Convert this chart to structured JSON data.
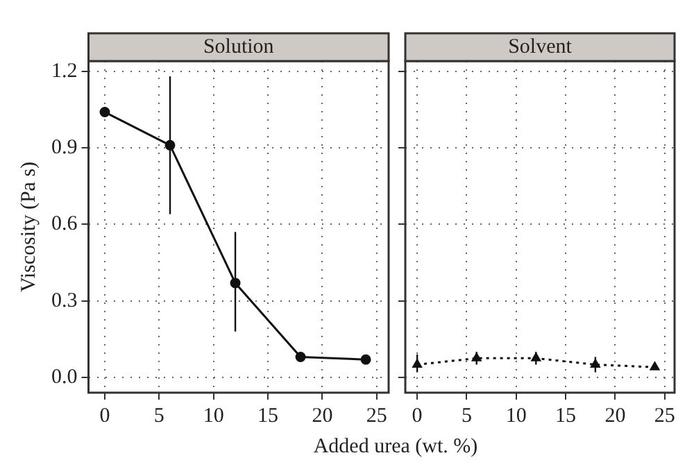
{
  "chart_data": [
    {
      "type": "line",
      "title": "Solution",
      "ylabel": "Viscosity (Pa s)",
      "xlabel": "Added urea (wt. %)",
      "x": [
        0,
        6,
        12,
        18,
        24
      ],
      "series": [
        {
          "color": "#111111",
          "values": [
            1.04,
            0.91,
            0.37,
            0.08,
            0.07
          ],
          "errors": [
            null,
            [
              0.64,
              1.18
            ],
            [
              0.18,
              0.57
            ],
            null,
            0.01
          ]
        }
      ],
      "xlim": [
        -1.5,
        26.1
      ],
      "xticks": [
        0,
        5,
        10,
        15,
        20,
        25
      ],
      "ylim": [
        -0.06,
        1.24
      ],
      "yticks": [
        {
          "value": 0,
          "label": "0.0"
        },
        0.3,
        0.6,
        0.9,
        1.2
      ],
      "grid": true,
      "legend": false,
      "marker": "circle",
      "line_style": "solid"
    },
    {
      "type": "line",
      "title": "Solvent",
      "x": [
        0,
        6,
        12,
        18,
        24
      ],
      "series": [
        {
          "color": "#111111",
          "values": [
            0.05,
            0.075,
            0.075,
            0.05,
            0.04
          ],
          "errors": [
            [
              0.02,
              0.09
            ],
            [
              0.05,
              0.1
            ],
            [
              0.05,
              0.1
            ],
            [
              0.02,
              0.08
            ],
            null
          ]
        }
      ],
      "xlim": [
        -1.2,
        26
      ],
      "xticks": [
        0,
        5,
        10,
        15,
        20,
        25
      ],
      "ylim": [
        -0.06,
        1.24
      ],
      "yticks": [
        0,
        0.3,
        0.6,
        0.9,
        1.2
      ],
      "grid": true,
      "legend": false,
      "marker": "triangle",
      "line_style": "dotted",
      "tick_labels": "x"
    }
  ]
}
